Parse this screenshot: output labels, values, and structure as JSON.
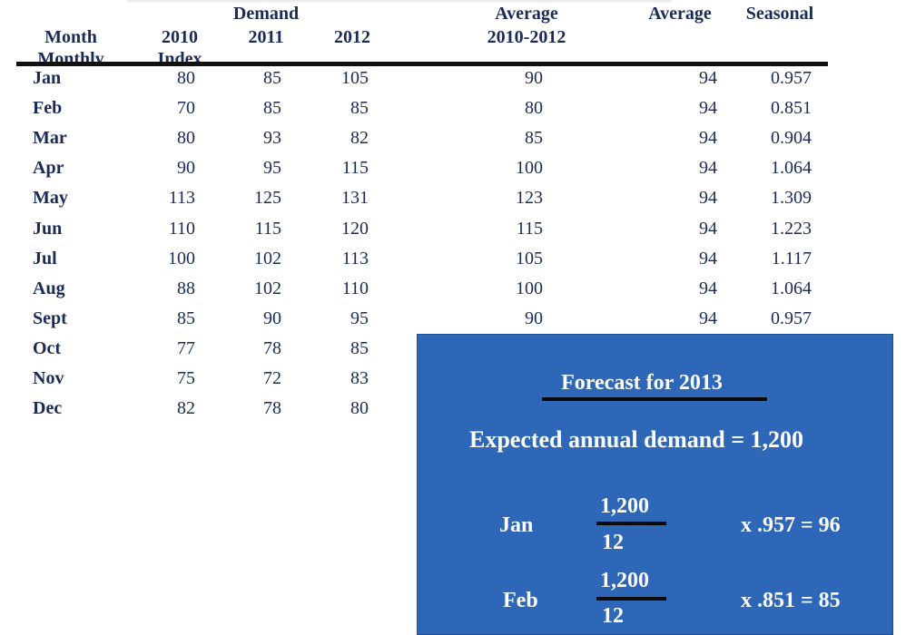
{
  "headers": {
    "demand": "Demand",
    "average_top": "Average",
    "average_right": "Average",
    "seasonal": "Seasonal",
    "month": "Month",
    "y2010": "2010",
    "y2011": "2011",
    "y2012": "2012",
    "avg_range": "2010-2012",
    "monthly": "Monthly",
    "index": "Index"
  },
  "rows": [
    {
      "month": "Jan",
      "d2010": "80",
      "d2011": "85",
      "d2012": "105",
      "avg": "90",
      "monthly_avg": "94",
      "index": "0.957"
    },
    {
      "month": "Feb",
      "d2010": "70",
      "d2011": "85",
      "d2012": "85",
      "avg": "80",
      "monthly_avg": "94",
      "index": "0.851"
    },
    {
      "month": "Mar",
      "d2010": "80",
      "d2011": "93",
      "d2012": "82",
      "avg": "85",
      "monthly_avg": "94",
      "index": "0.904"
    },
    {
      "month": "Apr",
      "d2010": "90",
      "d2011": "95",
      "d2012": "115",
      "avg": "100",
      "monthly_avg": "94",
      "index": "1.064"
    },
    {
      "month": "May",
      "d2010": "113",
      "d2011": "125",
      "d2012": "131",
      "avg": "123",
      "monthly_avg": "94",
      "index": "1.309"
    },
    {
      "month": "Jun",
      "d2010": "110",
      "d2011": "115",
      "d2012": "120",
      "avg": "115",
      "monthly_avg": "94",
      "index": "1.223"
    },
    {
      "month": "Jul",
      "d2010": "100",
      "d2011": "102",
      "d2012": "113",
      "avg": "105",
      "monthly_avg": "94",
      "index": "1.117"
    },
    {
      "month": "Aug",
      "d2010": "88",
      "d2011": "102",
      "d2012": "110",
      "avg": "100",
      "monthly_avg": "94",
      "index": "1.064"
    },
    {
      "month": "Sept",
      "d2010": "85",
      "d2011": "90",
      "d2012": "95",
      "avg": "90",
      "monthly_avg": "94",
      "index": "0.957"
    },
    {
      "month": "Oct",
      "d2010": "77",
      "d2011": "78",
      "d2012": "85"
    },
    {
      "month": "Nov",
      "d2010": "75",
      "d2011": "72",
      "d2012": "83"
    },
    {
      "month": "Dec",
      "d2010": "82",
      "d2011": "78",
      "d2012": "80"
    }
  ],
  "forecast": {
    "title": "Forecast for 2013",
    "expected": "Expected annual demand = 1,200",
    "lines": [
      {
        "month": "Jan",
        "numerator": "1,200",
        "denominator": "12",
        "result": "x .957 = 96"
      },
      {
        "month": "Feb",
        "numerator": "1,200",
        "denominator": "12",
        "result": "x .851 = 85"
      }
    ],
    "box_color": "#2e67b8"
  },
  "colors": {
    "text": "#1a2b57",
    "rule": "#111111",
    "box_text": "#ffffff"
  }
}
